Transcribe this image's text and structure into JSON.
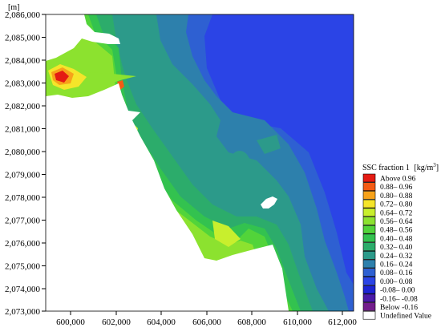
{
  "map": {
    "unit_label": "[m]",
    "y_ticks": [
      "2,086,000",
      "2,085,000",
      "2,084,000",
      "2,083,000",
      "2,082,000",
      "2,081,000",
      "2,080,000",
      "2,079,000",
      "2,078,000",
      "2,077,000",
      "2,076,000",
      "2,075,000",
      "2,074,000",
      "2,073,000"
    ],
    "x_ticks": [
      "600,000",
      "602,000",
      "604,000",
      "606,000",
      "608,000",
      "610,000",
      "612,000"
    ]
  },
  "legend": {
    "title": "SSC fraction 1",
    "unit": "[kg/m",
    "unit_exp": "3",
    "unit_close": "]",
    "items": [
      {
        "label": "Above  0.96",
        "color": "#e41b13"
      },
      {
        "label": "0.88– 0.96",
        "color": "#f45b14"
      },
      {
        "label": "0.80– 0.88",
        "color": "#f7a21a"
      },
      {
        "label": "0.72– 0.80",
        "color": "#f5e52a"
      },
      {
        "label": "0.64– 0.72",
        "color": "#c8ef2d"
      },
      {
        "label": "0.56– 0.64",
        "color": "#8ce22f"
      },
      {
        "label": "0.48– 0.56",
        "color": "#52d43a"
      },
      {
        "label": "0.40– 0.48",
        "color": "#33c24f"
      },
      {
        "label": "0.32– 0.40",
        "color": "#2cac6b"
      },
      {
        "label": "0.24– 0.32",
        "color": "#2c9a8a"
      },
      {
        "label": "0.16– 0.24",
        "color": "#2d80ac"
      },
      {
        "label": "0.08– 0.16",
        "color": "#2e60d2"
      },
      {
        "label": "0.00– 0.08",
        "color": "#2b44e6"
      },
      {
        "label": "-0.08– 0.00",
        "color": "#1d24d4"
      },
      {
        "label": "-0.16– -0.08",
        "color": "#4a1aa8"
      },
      {
        "label": "Below -0.16",
        "color": "#731d8c"
      },
      {
        "label": "Undefined Value",
        "color": "#ffffff"
      }
    ]
  }
}
